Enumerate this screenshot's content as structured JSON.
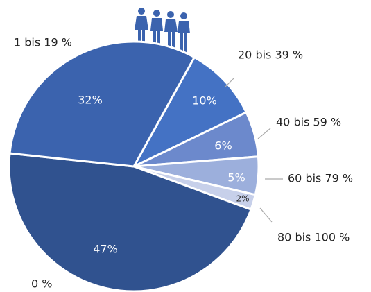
{
  "chart_data": {
    "type": "pie",
    "categories": [
      "20 bis 39 %",
      "40 bis 59 %",
      "60 bis 79 %",
      "80 bis 100 %",
      "0 %",
      "1 bis 19 %"
    ],
    "values": [
      10,
      6,
      5,
      2,
      47,
      32
    ],
    "value_labels": [
      "10%",
      "6%",
      "5%",
      "2%",
      "47%",
      "32%"
    ],
    "colors": [
      "#4472c4",
      "#6c89cc",
      "#9cafdc",
      "#c7d0ea",
      "#30528f",
      "#3b63ae"
    ]
  }
}
